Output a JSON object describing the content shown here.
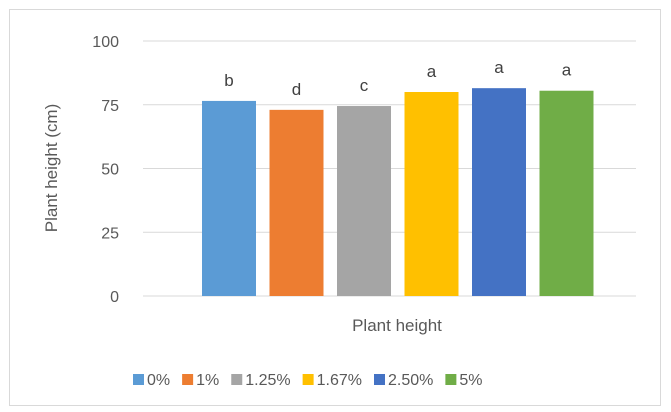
{
  "chart_data": {
    "type": "bar",
    "xlabel": "Plant height",
    "ylabel": "Plant height (cm)",
    "ylim": [
      0,
      100
    ],
    "yticks": [
      0,
      25,
      50,
      75,
      100
    ],
    "grid": true,
    "legend_position": "bottom",
    "category": "Plant height",
    "series": [
      {
        "name": "0%",
        "value": 76.5,
        "letter": "b",
        "color": "#5B9BD5"
      },
      {
        "name": "1%",
        "value": 73,
        "letter": "d",
        "color": "#ED7D31"
      },
      {
        "name": "1.25%",
        "value": 74.5,
        "letter": "c",
        "color": "#A5A5A5"
      },
      {
        "name": "1.67%",
        "value": 80,
        "letter": "a",
        "color": "#FFC000"
      },
      {
        "name": "2.50%",
        "value": 81.5,
        "letter": "a",
        "color": "#4472C4"
      },
      {
        "name": "5%",
        "value": 80.5,
        "letter": "a",
        "color": "#70AD47"
      }
    ]
  }
}
